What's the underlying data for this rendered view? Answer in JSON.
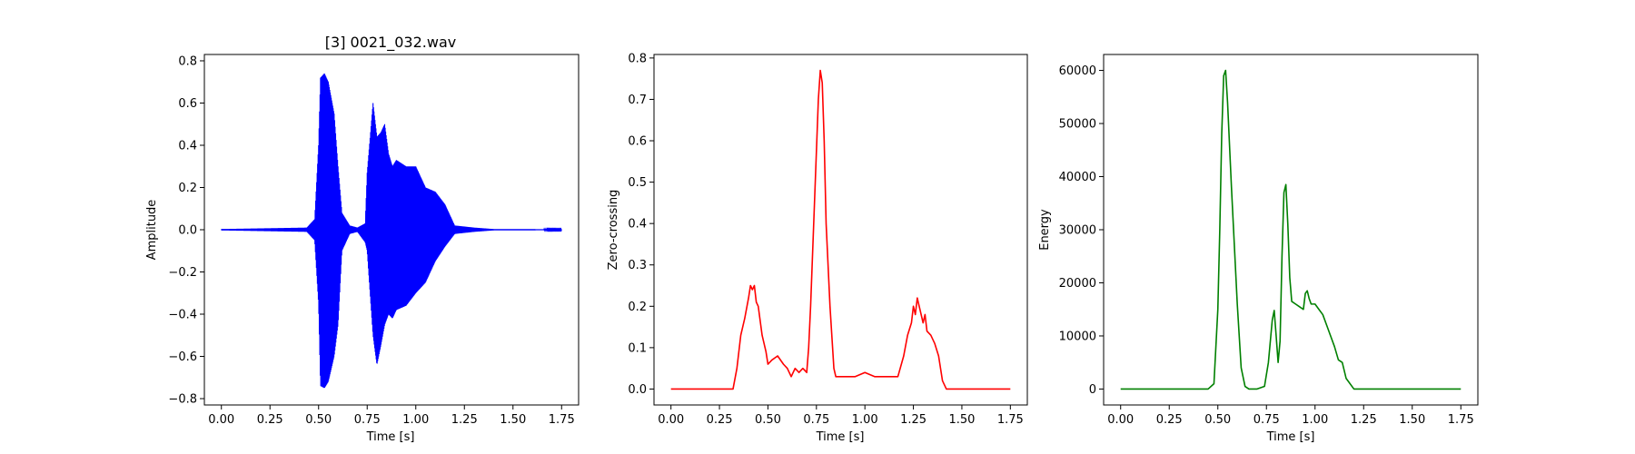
{
  "chart_data": [
    {
      "type": "line",
      "title": "[3] 0021_032.wav",
      "xlabel": "Time [s]",
      "ylabel": "Amplitude",
      "color": "#0000ff",
      "xlim": [
        -0.0875,
        1.8375
      ],
      "ylim": [
        -0.83,
        0.83
      ],
      "xticks": [
        0.0,
        0.25,
        0.5,
        0.75,
        1.0,
        1.25,
        1.5,
        1.75
      ],
      "xtick_labels": [
        "0.00",
        "0.25",
        "0.50",
        "0.75",
        "1.00",
        "1.25",
        "1.50",
        "1.75"
      ],
      "yticks": [
        -0.8,
        -0.6,
        -0.4,
        -0.2,
        0.0,
        0.2,
        0.4,
        0.6,
        0.8
      ],
      "ytick_labels": [
        "−0.8",
        "−0.6",
        "−0.4",
        "−0.2",
        "0.0",
        "0.2",
        "0.4",
        "0.6",
        "0.8"
      ],
      "envelope": {
        "x": [
          0.0,
          0.44,
          0.48,
          0.5,
          0.51,
          0.53,
          0.55,
          0.58,
          0.6,
          0.62,
          0.66,
          0.7,
          0.74,
          0.75,
          0.78,
          0.8,
          0.82,
          0.84,
          0.86,
          0.88,
          0.9,
          0.95,
          1.0,
          1.05,
          1.1,
          1.15,
          1.2,
          1.25,
          1.3,
          1.4,
          1.75
        ],
        "max": [
          0.003,
          0.01,
          0.05,
          0.4,
          0.72,
          0.74,
          0.7,
          0.55,
          0.3,
          0.08,
          0.02,
          0.01,
          0.03,
          0.27,
          0.6,
          0.44,
          0.46,
          0.5,
          0.36,
          0.3,
          0.33,
          0.3,
          0.3,
          0.2,
          0.18,
          0.12,
          0.02,
          0.015,
          0.01,
          0.003,
          0.002
        ],
        "min": [
          -0.003,
          -0.01,
          -0.05,
          -0.35,
          -0.74,
          -0.75,
          -0.72,
          -0.6,
          -0.45,
          -0.1,
          -0.02,
          -0.01,
          -0.06,
          -0.1,
          -0.5,
          -0.64,
          -0.55,
          -0.45,
          -0.4,
          -0.42,
          -0.38,
          -0.36,
          -0.3,
          -0.25,
          -0.15,
          -0.08,
          -0.02,
          -0.015,
          -0.01,
          -0.003,
          -0.002
        ]
      }
    },
    {
      "type": "line",
      "title": "",
      "xlabel": "Time [s]",
      "ylabel": "Zero-crossing",
      "color": "#ff0000",
      "xlim": [
        -0.0875,
        1.8375
      ],
      "ylim": [
        -0.0385,
        0.8085
      ],
      "xticks": [
        0.0,
        0.25,
        0.5,
        0.75,
        1.0,
        1.25,
        1.5,
        1.75
      ],
      "xtick_labels": [
        "0.00",
        "0.25",
        "0.50",
        "0.75",
        "1.00",
        "1.25",
        "1.50",
        "1.75"
      ],
      "yticks": [
        0.0,
        0.1,
        0.2,
        0.3,
        0.4,
        0.5,
        0.6,
        0.7,
        0.8
      ],
      "ytick_labels": [
        "0.0",
        "0.1",
        "0.2",
        "0.3",
        "0.4",
        "0.5",
        "0.6",
        "0.7",
        "0.8"
      ],
      "x": [
        0.0,
        0.32,
        0.34,
        0.36,
        0.38,
        0.4,
        0.41,
        0.42,
        0.43,
        0.44,
        0.45,
        0.47,
        0.49,
        0.5,
        0.52,
        0.55,
        0.58,
        0.6,
        0.62,
        0.64,
        0.66,
        0.68,
        0.7,
        0.71,
        0.72,
        0.74,
        0.76,
        0.77,
        0.78,
        0.79,
        0.8,
        0.82,
        0.84,
        0.85,
        0.86,
        0.9,
        0.95,
        1.0,
        1.05,
        1.1,
        1.15,
        1.17,
        1.2,
        1.22,
        1.24,
        1.25,
        1.26,
        1.27,
        1.28,
        1.3,
        1.31,
        1.32,
        1.34,
        1.36,
        1.38,
        1.4,
        1.42,
        1.75
      ],
      "y": [
        0.0,
        0.0,
        0.05,
        0.13,
        0.17,
        0.22,
        0.25,
        0.24,
        0.25,
        0.21,
        0.2,
        0.13,
        0.09,
        0.06,
        0.07,
        0.08,
        0.06,
        0.05,
        0.03,
        0.05,
        0.04,
        0.05,
        0.04,
        0.1,
        0.2,
        0.45,
        0.7,
        0.77,
        0.74,
        0.6,
        0.4,
        0.2,
        0.05,
        0.03,
        0.03,
        0.03,
        0.03,
        0.04,
        0.03,
        0.03,
        0.03,
        0.03,
        0.08,
        0.13,
        0.16,
        0.2,
        0.18,
        0.22,
        0.2,
        0.16,
        0.18,
        0.14,
        0.13,
        0.11,
        0.08,
        0.02,
        0.0,
        0.0
      ]
    },
    {
      "type": "line",
      "title": "",
      "xlabel": "Time [s]",
      "ylabel": "Energy",
      "color": "#008000",
      "xlim": [
        -0.0875,
        1.8375
      ],
      "ylim": [
        -3000,
        63000
      ],
      "xticks": [
        0.0,
        0.25,
        0.5,
        0.75,
        1.0,
        1.25,
        1.5,
        1.75
      ],
      "xtick_labels": [
        "0.00",
        "0.25",
        "0.50",
        "0.75",
        "1.00",
        "1.25",
        "1.50",
        "1.75"
      ],
      "yticks": [
        0,
        10000,
        20000,
        30000,
        40000,
        50000,
        60000
      ],
      "ytick_labels": [
        "0",
        "10000",
        "20000",
        "30000",
        "40000",
        "50000",
        "60000"
      ],
      "x": [
        0.0,
        0.45,
        0.48,
        0.5,
        0.51,
        0.52,
        0.53,
        0.54,
        0.55,
        0.57,
        0.6,
        0.62,
        0.64,
        0.66,
        0.7,
        0.74,
        0.76,
        0.78,
        0.79,
        0.8,
        0.81,
        0.82,
        0.83,
        0.84,
        0.85,
        0.86,
        0.87,
        0.88,
        0.9,
        0.92,
        0.94,
        0.95,
        0.96,
        0.97,
        0.98,
        1.0,
        1.02,
        1.04,
        1.06,
        1.08,
        1.1,
        1.12,
        1.14,
        1.16,
        1.2,
        1.75
      ],
      "y": [
        0,
        0,
        1000,
        15000,
        30000,
        48000,
        59000,
        60000,
        54000,
        38000,
        16000,
        4000,
        500,
        0,
        0,
        500,
        5000,
        13000,
        14800,
        10000,
        5000,
        9000,
        25000,
        37000,
        38500,
        31000,
        21000,
        16500,
        16000,
        15500,
        15000,
        18000,
        18500,
        17000,
        16000,
        16000,
        15000,
        14000,
        12000,
        10000,
        8000,
        5500,
        5000,
        2000,
        0,
        0
      ]
    }
  ]
}
